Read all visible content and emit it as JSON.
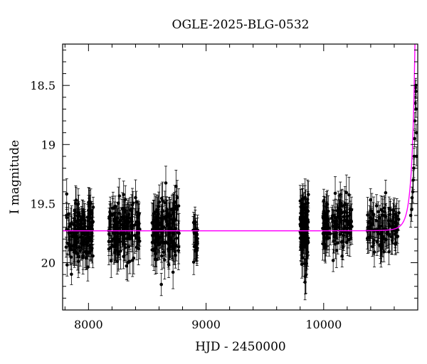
{
  "chart_data": {
    "type": "scatter",
    "title": "OGLE-2025-BLG-0532",
    "xlabel": "HJD - 2450000",
    "ylabel": "I magnitude",
    "xlim": [
      7780,
      10800
    ],
    "ylim": [
      20.4,
      18.15
    ],
    "y_inverted": true,
    "x_ticks": [
      8000,
      9000,
      10000
    ],
    "x_tick_labels": [
      "8000",
      "9000",
      "10000"
    ],
    "y_ticks": [
      18.5,
      19,
      19.5,
      20
    ],
    "y_tick_labels": [
      "18.5",
      "19",
      "19.5",
      "20"
    ],
    "grid": false,
    "colors": {
      "points": "#000000",
      "errorbars": "#000000",
      "model": "#ff00ff"
    },
    "seasons": [
      {
        "x_range": [
          7810,
          8040
        ],
        "mag_mean": 19.75,
        "mag_scatter": 0.12,
        "err": 0.12,
        "n": 150
      },
      {
        "x_range": [
          8170,
          8440
        ],
        "mag_mean": 19.72,
        "mag_scatter": 0.11,
        "err": 0.12,
        "n": 160
      },
      {
        "x_range": [
          8540,
          8770
        ],
        "mag_mean": 19.73,
        "mag_scatter": 0.13,
        "err": 0.13,
        "n": 150
      },
      {
        "x_range": [
          8890,
          8930
        ],
        "mag_mean": 19.78,
        "mag_scatter": 0.1,
        "err": 0.1,
        "n": 30
      },
      {
        "x_range": [
          9800,
          9870
        ],
        "mag_mean": 19.72,
        "mag_scatter": 0.14,
        "err": 0.13,
        "n": 110
      },
      {
        "x_range": [
          9990,
          10240
        ],
        "mag_mean": 19.68,
        "mag_scatter": 0.1,
        "err": 0.12,
        "n": 130
      },
      {
        "x_range": [
          10370,
          10640
        ],
        "mag_mean": 19.7,
        "mag_scatter": 0.1,
        "err": 0.12,
        "n": 110
      }
    ],
    "event_points": [
      {
        "x": 10740,
        "mag": 19.6,
        "err": 0.1
      },
      {
        "x": 10748,
        "mag": 19.55,
        "err": 0.1
      },
      {
        "x": 10752,
        "mag": 19.45,
        "err": 0.09
      },
      {
        "x": 10758,
        "mag": 19.4,
        "err": 0.09
      },
      {
        "x": 10762,
        "mag": 19.3,
        "err": 0.08
      },
      {
        "x": 10766,
        "mag": 19.2,
        "err": 0.08
      },
      {
        "x": 10769,
        "mag": 19.1,
        "err": 0.07
      },
      {
        "x": 10772,
        "mag": 18.95,
        "err": 0.07
      },
      {
        "x": 10775,
        "mag": 18.8,
        "err": 0.07
      },
      {
        "x": 10778,
        "mag": 18.65,
        "err": 0.06
      },
      {
        "x": 10780,
        "mag": 18.52,
        "err": 0.06
      },
      {
        "x": 10782,
        "mag": 18.5,
        "err": 0.06
      },
      {
        "x": 10784,
        "mag": 18.55,
        "err": 0.06
      },
      {
        "x": 10786,
        "mag": 18.7,
        "err": 0.07
      },
      {
        "x": 10788,
        "mag": 18.9,
        "err": 0.07
      },
      {
        "x": 10790,
        "mag": 19.1,
        "err": 0.08
      }
    ],
    "model": {
      "baseline_mag": 19.73,
      "t0": 10790,
      "peak_mag": 18.5,
      "tE": 60,
      "u0": 0.05
    }
  }
}
